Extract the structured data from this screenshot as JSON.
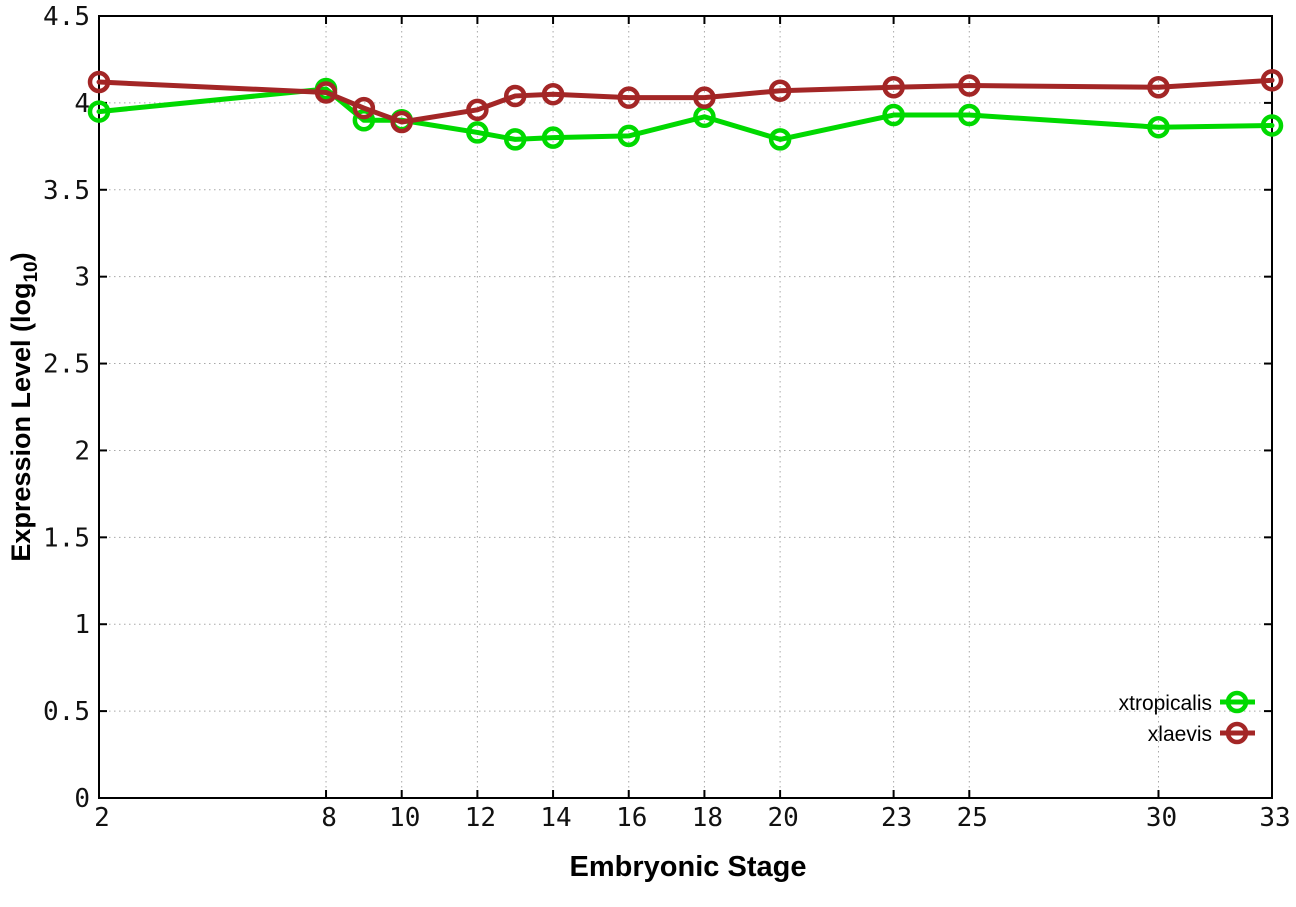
{
  "figure": {
    "xlabel": "Embryonic Stage",
    "ylabel_prefix": "Expression Level (log",
    "ylabel_sub": "10",
    "ylabel_suffix": ")",
    "background_color": "#ffffff",
    "border_color": "#000000",
    "grid_color": "#a8a8a8"
  },
  "chart_data": {
    "type": "line",
    "title": "",
    "xlabel": "Embryonic Stage",
    "ylabel": "Expression Level (log10)",
    "x": [
      2,
      8,
      9,
      10,
      12,
      13,
      14,
      16,
      18,
      20,
      23,
      25,
      30,
      33
    ],
    "series": [
      {
        "name": "xtropicalis",
        "color": "#00d900",
        "marker": "open-circle",
        "values": [
          3.95,
          4.08,
          3.9,
          3.9,
          3.83,
          3.79,
          3.8,
          3.81,
          3.92,
          3.79,
          3.93,
          3.93,
          3.86,
          3.87
        ]
      },
      {
        "name": "xlaevis",
        "color": "#a32626",
        "marker": "open-circle",
        "values": [
          4.12,
          4.06,
          3.97,
          3.89,
          3.96,
          4.04,
          4.05,
          4.03,
          4.03,
          4.07,
          4.09,
          4.1,
          4.09,
          4.13
        ]
      }
    ],
    "xticks": [
      2,
      8,
      10,
      12,
      14,
      16,
      18,
      20,
      23,
      25,
      30,
      33
    ],
    "yticks": [
      0,
      0.5,
      1,
      1.5,
      2,
      2.5,
      3,
      3.5,
      4,
      4.5
    ],
    "xlim": [
      2,
      33
    ],
    "ylim": [
      0,
      4.5
    ],
    "grid": true,
    "grid_style": "dotted",
    "legend_position": "bottom-right",
    "legend_order": [
      "xtropicalis",
      "xlaevis"
    ]
  }
}
